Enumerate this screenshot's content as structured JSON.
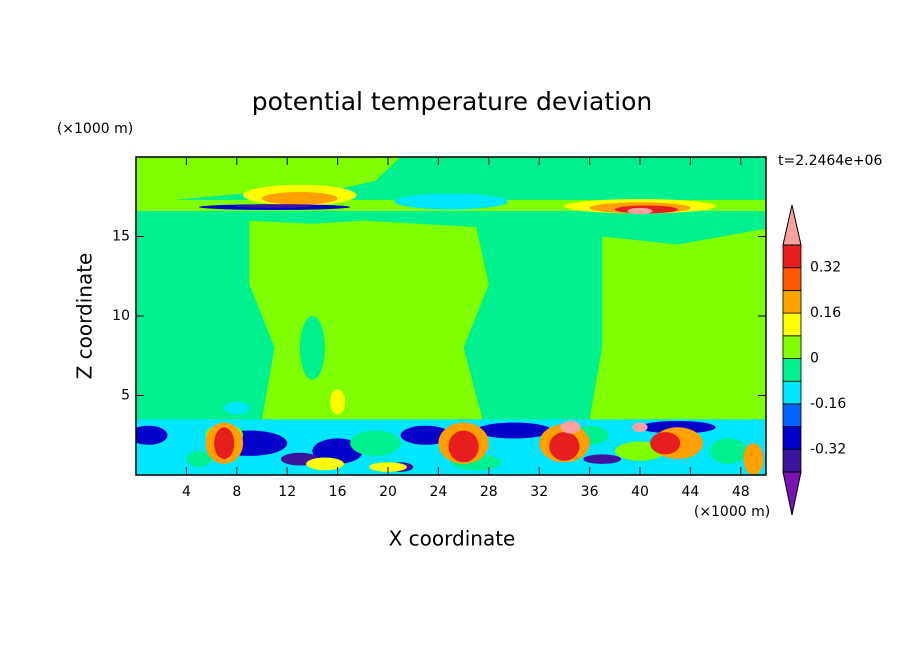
{
  "chart_data": {
    "type": "contour",
    "title": "potential temperature deviation",
    "xlabel": "X coordinate",
    "ylabel": "Z coordinate",
    "xunit": "(×1000 m)",
    "yunit": "(×1000 m)",
    "annotation": "t=2.2464e+06",
    "xlim": [
      0,
      50
    ],
    "xticks": [
      4,
      8,
      12,
      16,
      20,
      24,
      28,
      32,
      36,
      40,
      44,
      48
    ],
    "ylim": [
      0,
      20
    ],
    "yticks": [
      5,
      10,
      15
    ],
    "colorbar": {
      "levels": [
        -0.4,
        -0.32,
        -0.24,
        -0.16,
        -0.08,
        0,
        0.08,
        0.16,
        0.24,
        0.32,
        0.4
      ],
      "ticks": [
        -0.32,
        -0.16,
        0,
        0.16,
        0.32
      ],
      "colors": [
        "#7814b4",
        "#3c14a0",
        "#0000c8",
        "#0064ff",
        "#00e6ff",
        "#00f090",
        "#80ff00",
        "#ffff00",
        "#ffa000",
        "#ff5a00",
        "#e61e1e",
        "#ffa0a0"
      ]
    }
  }
}
